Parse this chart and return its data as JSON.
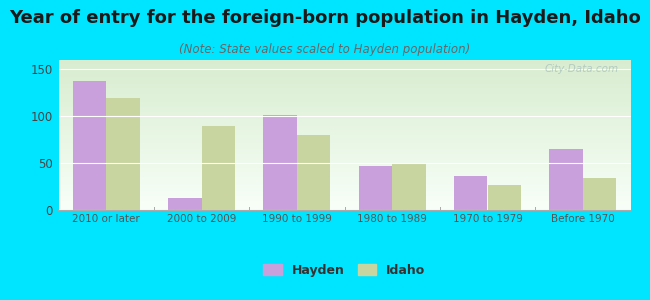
{
  "title": "Year of entry for the foreign-born population in Hayden, Idaho",
  "subtitle": "(Note: State values scaled to Hayden population)",
  "categories": [
    "2010 or later",
    "2000 to 2009",
    "1990 to 1999",
    "1980 to 1989",
    "1970 to 1979",
    "Before 1970"
  ],
  "hayden_values": [
    138,
    13,
    101,
    47,
    36,
    65
  ],
  "idaho_values": [
    119,
    90,
    80,
    50,
    27,
    34
  ],
  "hayden_color": "#c9a0dc",
  "idaho_color": "#c8d5a0",
  "background_color": "#00e5ff",
  "plot_bg_top": "#d8edd0",
  "plot_bg_bottom": "#f8fff8",
  "title_fontsize": 13,
  "subtitle_fontsize": 8.5,
  "ylim": [
    0,
    160
  ],
  "yticks": [
    0,
    50,
    100,
    150
  ],
  "bar_width": 0.35,
  "watermark": "City-Data.com"
}
